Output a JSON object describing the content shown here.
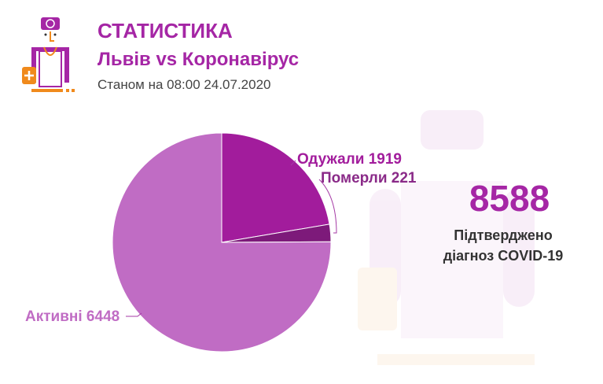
{
  "header": {
    "title": "СТАТИСТИКА",
    "subtitle": "Львів vs Коронавірус",
    "date": "Станом на 08:00 24.07.2020"
  },
  "summary": {
    "total": "8588",
    "caption_line1": "Підтверджено",
    "caption_line2": "діагноз COVID-19"
  },
  "colors": {
    "accent": "#a526a5",
    "active": "#c06cc4",
    "recovered": "#a21c9c",
    "deaths": "#7d1a7a",
    "orange": "#f08a1c"
  },
  "chart_data": {
    "type": "pie",
    "title": "",
    "slices": [
      {
        "name": "Одужали",
        "value": 1919,
        "label": "Одужали 1919",
        "color": "#a21c9c"
      },
      {
        "name": "Померли",
        "value": 221,
        "label": "Померли 221",
        "color": "#7d1a7a"
      },
      {
        "name": "Активні",
        "value": 6448,
        "label": "Активні 6448",
        "color": "#c06cc4"
      }
    ],
    "start": "top",
    "direction": "clockwise"
  }
}
